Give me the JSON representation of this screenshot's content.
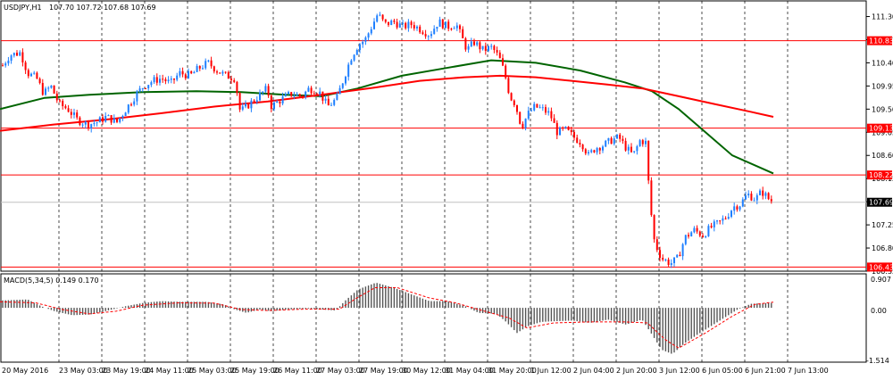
{
  "header": {
    "symbol": "USDJPY,H1",
    "ohlc": "107.70 107.72 107.68 107.69"
  },
  "macd": {
    "label": "MACD(5,34,5) 0.149 0.170",
    "axis_ticks": [
      "0.907",
      "0.00",
      "-1.514"
    ]
  },
  "chart_data": {
    "type": "candlestick",
    "price_axis": {
      "ylim": [
        106.35,
        111.5
      ],
      "tick_labels": [
        "111.30",
        "110.85",
        "110.40",
        "109.95",
        "109.50",
        "109.05",
        "108.60",
        "108.15",
        "107.70",
        "107.25",
        "106.80",
        "106.35"
      ]
    },
    "x_tick_labels": [
      "20 May 2016",
      "23 May 03:00",
      "23 May 19:00",
      "24 May 11:00",
      "25 May 03:00",
      "25 May 19:00",
      "26 May 11:00",
      "27 May 03:00",
      "27 May 19:00",
      "30 May 12:00",
      "31 May 04:00",
      "31 May 20:00",
      "1 Jun 12:00",
      "2 Jun 04:00",
      "2 Jun 20:00",
      "3 Jun 12:00",
      "6 Jun 05:00",
      "6 Jun 21:00",
      "7 Jun 13:00"
    ],
    "horizontal_levels": [
      {
        "value": 110.83,
        "label": "110.83",
        "color": "#ff0000"
      },
      {
        "value": 109.13,
        "label": "109.13",
        "color": "#ff0000"
      },
      {
        "value": 108.22,
        "label": "108.22",
        "color": "#ff0000"
      },
      {
        "value": 106.43,
        "label": "106.43",
        "color": "#ff0000"
      }
    ],
    "current_price": {
      "value": 107.69,
      "label": "107.69"
    },
    "candles": {
      "up_color": "#1e7fff",
      "down_color": "#ff0000",
      "path": [
        [
          0,
          110.3
        ],
        [
          10,
          110.55
        ],
        [
          22,
          110.6
        ],
        [
          30,
          110.2
        ],
        [
          40,
          110.1
        ],
        [
          48,
          109.8
        ],
        [
          56,
          109.95
        ],
        [
          65,
          109.6
        ],
        [
          75,
          109.5
        ],
        [
          85,
          109.3
        ],
        [
          97,
          109.2
        ],
        [
          108,
          109.25
        ],
        [
          118,
          109.35
        ],
        [
          130,
          109.25
        ],
        [
          142,
          109.55
        ],
        [
          152,
          109.8
        ],
        [
          160,
          109.95
        ],
        [
          170,
          110.05
        ],
        [
          180,
          110.1
        ],
        [
          190,
          110.0
        ],
        [
          200,
          110.2
        ],
        [
          212,
          110.15
        ],
        [
          222,
          110.3
        ],
        [
          232,
          110.4
        ],
        [
          242,
          110.25
        ],
        [
          252,
          110.15
        ],
        [
          262,
          110.1
        ],
        [
          268,
          109.45
        ],
        [
          275,
          109.55
        ],
        [
          285,
          109.7
        ],
        [
          298,
          109.9
        ],
        [
          303,
          109.55
        ],
        [
          315,
          109.7
        ],
        [
          325,
          109.8
        ],
        [
          337,
          109.75
        ],
        [
          345,
          109.9
        ],
        [
          356,
          109.85
        ],
        [
          366,
          109.55
        ],
        [
          376,
          109.7
        ],
        [
          384,
          110.1
        ],
        [
          392,
          110.5
        ],
        [
          400,
          110.75
        ],
        [
          408,
          110.85
        ],
        [
          415,
          111.1
        ],
        [
          422,
          111.35
        ],
        [
          430,
          111.15
        ],
        [
          440,
          111.2
        ],
        [
          450,
          111.1
        ],
        [
          460,
          111.15
        ],
        [
          470,
          111.05
        ],
        [
          480,
          110.95
        ],
        [
          490,
          111.2
        ],
        [
          500,
          111.1
        ],
        [
          510,
          111.15
        ],
        [
          516,
          110.9
        ],
        [
          522,
          110.65
        ],
        [
          530,
          110.8
        ],
        [
          540,
          110.65
        ],
        [
          550,
          110.7
        ],
        [
          558,
          110.5
        ],
        [
          564,
          110.2
        ],
        [
          570,
          109.75
        ],
        [
          576,
          109.6
        ],
        [
          583,
          109.15
        ],
        [
          590,
          109.4
        ],
        [
          598,
          109.55
        ],
        [
          606,
          109.5
        ],
        [
          615,
          109.4
        ],
        [
          623,
          109.05
        ],
        [
          632,
          109.1
        ],
        [
          642,
          108.95
        ],
        [
          650,
          108.85
        ],
        [
          658,
          108.6
        ],
        [
          666,
          108.75
        ],
        [
          675,
          108.8
        ],
        [
          684,
          108.9
        ],
        [
          692,
          108.95
        ],
        [
          700,
          108.75
        ],
        [
          708,
          108.6
        ],
        [
          716,
          108.9
        ],
        [
          722,
          108.85
        ],
        [
          727,
          107.65
        ],
        [
          732,
          106.9
        ],
        [
          740,
          106.6
        ],
        [
          750,
          106.5
        ],
        [
          758,
          106.6
        ],
        [
          766,
          107.0
        ],
        [
          776,
          107.15
        ],
        [
          786,
          107.05
        ],
        [
          795,
          107.2
        ],
        [
          805,
          107.3
        ],
        [
          812,
          107.4
        ],
        [
          820,
          107.6
        ],
        [
          828,
          107.65
        ],
        [
          836,
          107.85
        ],
        [
          845,
          107.75
        ],
        [
          852,
          107.9
        ],
        [
          860,
          107.75
        ],
        [
          866,
          107.69
        ]
      ]
    },
    "moving_averages": [
      {
        "color": "#006400",
        "points": [
          [
            0,
            109.5
          ],
          [
            50,
            109.72
          ],
          [
            100,
            109.78
          ],
          [
            160,
            109.83
          ],
          [
            220,
            109.85
          ],
          [
            270,
            109.83
          ],
          [
            320,
            109.78
          ],
          [
            360,
            109.75
          ],
          [
            400,
            109.9
          ],
          [
            450,
            110.15
          ],
          [
            500,
            110.3
          ],
          [
            550,
            110.45
          ],
          [
            600,
            110.4
          ],
          [
            650,
            110.25
          ],
          [
            700,
            110.02
          ],
          [
            730,
            109.85
          ],
          [
            760,
            109.5
          ],
          [
            790,
            109.05
          ],
          [
            820,
            108.6
          ],
          [
            866,
            108.25
          ]
        ]
      },
      {
        "color": "#ff0000",
        "points": [
          [
            0,
            109.08
          ],
          [
            60,
            109.2
          ],
          [
            120,
            109.3
          ],
          [
            180,
            109.42
          ],
          [
            240,
            109.55
          ],
          [
            300,
            109.65
          ],
          [
            360,
            109.78
          ],
          [
            420,
            109.92
          ],
          [
            470,
            110.05
          ],
          [
            520,
            110.12
          ],
          [
            560,
            110.15
          ],
          [
            600,
            110.12
          ],
          [
            640,
            110.05
          ],
          [
            680,
            109.98
          ],
          [
            720,
            109.9
          ],
          [
            760,
            109.75
          ],
          [
            800,
            109.6
          ],
          [
            840,
            109.45
          ],
          [
            866,
            109.35
          ]
        ]
      }
    ],
    "macd": {
      "ylim": [
        -1.514,
        0.907
      ],
      "signal_color": "#ff0000",
      "hist_color": "#555555",
      "hist": [
        [
          0,
          0.22
        ],
        [
          30,
          0.25
        ],
        [
          45,
          0.05
        ],
        [
          60,
          -0.1
        ],
        [
          80,
          -0.22
        ],
        [
          100,
          -0.2
        ],
        [
          120,
          -0.08
        ],
        [
          140,
          0.05
        ],
        [
          160,
          0.15
        ],
        [
          180,
          0.2
        ],
        [
          200,
          0.18
        ],
        [
          230,
          0.18
        ],
        [
          250,
          0.1
        ],
        [
          262,
          -0.05
        ],
        [
          275,
          -0.15
        ],
        [
          290,
          -0.05
        ],
        [
          303,
          -0.1
        ],
        [
          320,
          -0.05
        ],
        [
          345,
          -0.02
        ],
        [
          360,
          -0.05
        ],
        [
          375,
          -0.08
        ],
        [
          385,
          0.2
        ],
        [
          400,
          0.55
        ],
        [
          420,
          0.75
        ],
        [
          440,
          0.6
        ],
        [
          460,
          0.4
        ],
        [
          480,
          0.2
        ],
        [
          500,
          0.2
        ],
        [
          520,
          0.05
        ],
        [
          535,
          -0.15
        ],
        [
          555,
          -0.18
        ],
        [
          565,
          -0.4
        ],
        [
          578,
          -0.75
        ],
        [
          590,
          -0.55
        ],
        [
          605,
          -0.42
        ],
        [
          620,
          -0.4
        ],
        [
          640,
          -0.38
        ],
        [
          660,
          -0.45
        ],
        [
          680,
          -0.35
        ],
        [
          700,
          -0.5
        ],
        [
          718,
          -0.35
        ],
        [
          728,
          -0.75
        ],
        [
          740,
          -1.25
        ],
        [
          752,
          -1.38
        ],
        [
          766,
          -1.05
        ],
        [
          780,
          -0.8
        ],
        [
          795,
          -0.55
        ],
        [
          810,
          -0.3
        ],
        [
          825,
          -0.05
        ],
        [
          840,
          0.12
        ],
        [
          866,
          0.15
        ]
      ],
      "signal": [
        [
          0,
          0.18
        ],
        [
          40,
          0.15
        ],
        [
          70,
          -0.05
        ],
        [
          100,
          -0.18
        ],
        [
          130,
          -0.1
        ],
        [
          160,
          0.08
        ],
        [
          200,
          0.15
        ],
        [
          240,
          0.14
        ],
        [
          270,
          -0.05
        ],
        [
          300,
          -0.08
        ],
        [
          340,
          -0.04
        ],
        [
          380,
          -0.04
        ],
        [
          400,
          0.3
        ],
        [
          420,
          0.6
        ],
        [
          445,
          0.6
        ],
        [
          480,
          0.3
        ],
        [
          510,
          0.15
        ],
        [
          540,
          -0.08
        ],
        [
          570,
          -0.3
        ],
        [
          590,
          -0.6
        ],
        [
          620,
          -0.45
        ],
        [
          660,
          -0.42
        ],
        [
          700,
          -0.42
        ],
        [
          725,
          -0.45
        ],
        [
          745,
          -0.95
        ],
        [
          760,
          -1.2
        ],
        [
          790,
          -0.75
        ],
        [
          820,
          -0.25
        ],
        [
          845,
          0.1
        ],
        [
          866,
          0.17
        ]
      ]
    }
  }
}
